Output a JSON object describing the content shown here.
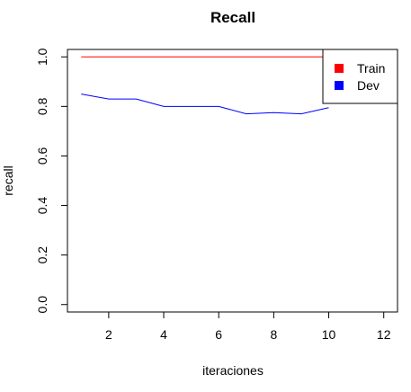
{
  "chart_data": {
    "type": "line",
    "title": "Recall",
    "xlabel": "iteraciones",
    "ylabel": "recall",
    "xlim": [
      0.5,
      12.5
    ],
    "ylim": [
      -0.03,
      1.03
    ],
    "x_ticks": [
      2,
      4,
      6,
      8,
      10,
      12
    ],
    "y_ticks": [
      0.0,
      0.2,
      0.4,
      0.6,
      0.8,
      1.0
    ],
    "x_tick_labels": [
      "2",
      "4",
      "6",
      "8",
      "10",
      "12"
    ],
    "y_tick_labels": [
      "0.0",
      "0.2",
      "0.4",
      "0.6",
      "0.8",
      "1.0"
    ],
    "grid": false,
    "legend_position": "top-right",
    "series": [
      {
        "name": "Train",
        "color": "#ff0000",
        "x": [
          1,
          2,
          3,
          4,
          5,
          6,
          7,
          8,
          9,
          10
        ],
        "y": [
          1.0,
          1.0,
          1.0,
          1.0,
          1.0,
          1.0,
          1.0,
          1.0,
          1.0,
          1.0
        ]
      },
      {
        "name": "Dev",
        "color": "#0000ff",
        "x": [
          1,
          2,
          3,
          4,
          5,
          6,
          7,
          8,
          9,
          10
        ],
        "y": [
          0.85,
          0.83,
          0.83,
          0.8,
          0.8,
          0.8,
          0.77,
          0.775,
          0.77,
          0.795
        ]
      }
    ]
  }
}
